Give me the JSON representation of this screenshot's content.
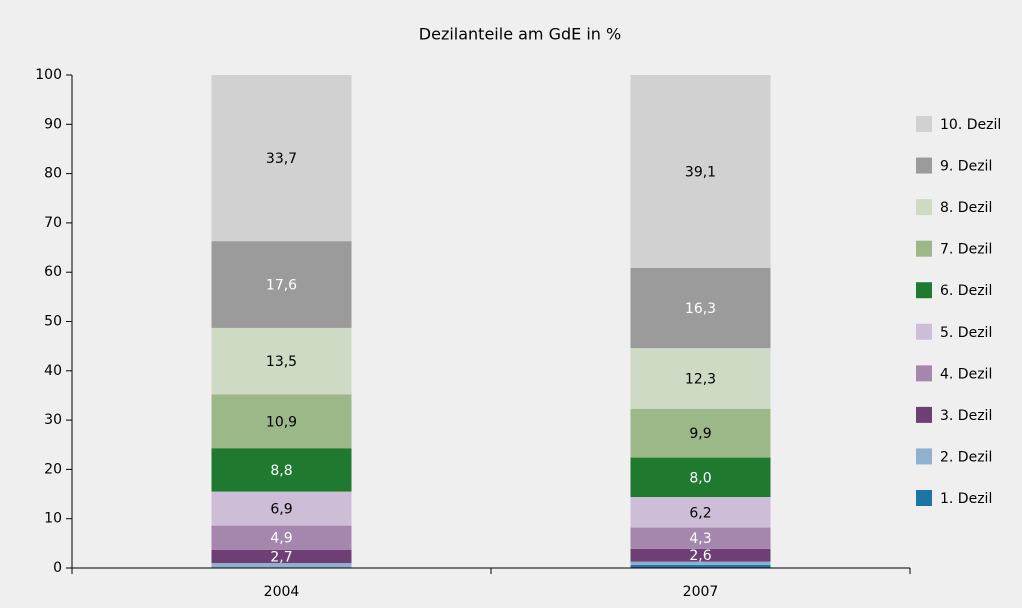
{
  "chart_data": {
    "type": "stacked_bar",
    "title": "Dezilanteile am GdE in %",
    "categories": [
      "2004",
      "2007"
    ],
    "series": [
      {
        "name": "1. Dezil",
        "color": "#1f74a6",
        "values": [
          0,
          0.6
        ]
      },
      {
        "name": "2. Dezil",
        "color": "#90b0d0",
        "values": [
          1.0,
          0.7
        ]
      },
      {
        "name": "3. Dezil",
        "color": "#6d3f74",
        "label_color": "#ffffff",
        "values": [
          2.7,
          2.6
        ],
        "value_labels": [
          "2,7",
          "2,6"
        ]
      },
      {
        "name": "4. Dezil",
        "color": "#a586ad",
        "label_color": "#ffffff",
        "values": [
          4.9,
          4.3
        ],
        "value_labels": [
          "4,9",
          "4,3"
        ]
      },
      {
        "name": "5. Dezil",
        "color": "#cebdd7",
        "label_color": "#000000",
        "values": [
          6.9,
          6.2
        ],
        "value_labels": [
          "6,9",
          "6,2"
        ]
      },
      {
        "name": "6. Dezil",
        "color": "#1f7a30",
        "label_color": "#ffffff",
        "values": [
          8.8,
          8.0
        ],
        "value_labels": [
          "8,8",
          "8,0"
        ]
      },
      {
        "name": "7. Dezil",
        "color": "#9cb889",
        "label_color": "#000000",
        "values": [
          10.9,
          9.9
        ],
        "value_labels": [
          "10,9",
          "9,9"
        ]
      },
      {
        "name": "8. Dezil",
        "color": "#cedac3",
        "label_color": "#000000",
        "values": [
          13.5,
          12.3
        ],
        "value_labels": [
          "13,5",
          "12,3"
        ]
      },
      {
        "name": "9. Dezil",
        "color": "#9b9b9b",
        "label_color": "#ffffff",
        "values": [
          17.6,
          16.3
        ],
        "value_labels": [
          "17,6",
          "16,3"
        ]
      },
      {
        "name": "10. Dezil",
        "color": "#d1d1d1",
        "label_color": "#000000",
        "values": [
          33.7,
          39.1
        ],
        "value_labels": [
          "33,7",
          "39,1"
        ]
      }
    ],
    "ylim": [
      0,
      100
    ],
    "yticks": [
      0,
      10,
      20,
      30,
      40,
      50,
      60,
      70,
      80,
      90,
      100
    ],
    "legend": "right"
  }
}
